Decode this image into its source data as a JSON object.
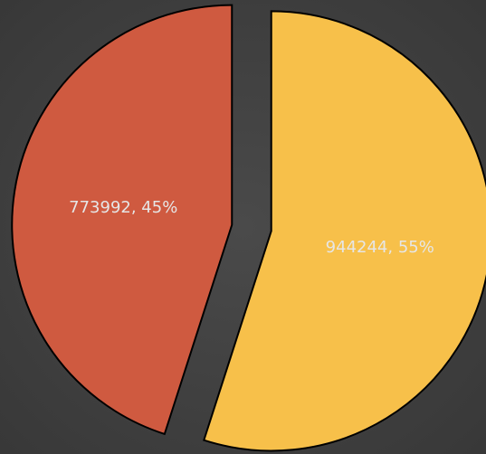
{
  "chart_data": {
    "type": "pie",
    "values": [
      944244,
      773992
    ],
    "value_labels": [
      "944244, 55%",
      "773992, 45%"
    ],
    "colors": [
      "#f7c04a",
      "#cf5a40"
    ]
  }
}
